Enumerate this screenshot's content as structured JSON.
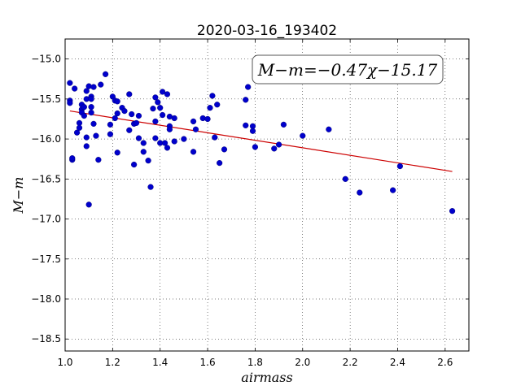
{
  "chart_data": {
    "type": "scatter",
    "title": "2020-03-16_193402",
    "xlabel": "airmass",
    "ylabel": "M−m",
    "xlim": [
      1.0,
      2.7
    ],
    "ylim": [
      -18.65,
      -14.75
    ],
    "xticks": [
      "1.0",
      "1.2",
      "1.4",
      "1.6",
      "1.8",
      "2.0",
      "2.2",
      "2.4",
      "2.6"
    ],
    "yticks": [
      "-15.0",
      "-15.5",
      "-16.0",
      "-16.5",
      "-17.0",
      "-17.5",
      "-18.0",
      "-18.5"
    ],
    "grid": true,
    "annotation": "M−m=−0.47χ−15.17",
    "fit": {
      "slope": -0.47,
      "intercept": -15.17,
      "x": [
        1.02,
        2.63
      ],
      "color": "#cc0000"
    },
    "point_color": "#0000cc",
    "points": [
      [
        1.02,
        -15.3
      ],
      [
        1.02,
        -15.52
      ],
      [
        1.02,
        -15.55
      ],
      [
        1.03,
        -16.26
      ],
      [
        1.03,
        -16.24
      ],
      [
        1.04,
        -15.37
      ],
      [
        1.05,
        -15.92
      ],
      [
        1.06,
        -15.8
      ],
      [
        1.06,
        -15.86
      ],
      [
        1.07,
        -15.57
      ],
      [
        1.07,
        -15.63
      ],
      [
        1.07,
        -15.67
      ],
      [
        1.08,
        -15.71
      ],
      [
        1.08,
        -15.6
      ],
      [
        1.09,
        -15.5
      ],
      [
        1.09,
        -15.4
      ],
      [
        1.09,
        -15.98
      ],
      [
        1.09,
        -16.09
      ],
      [
        1.1,
        -15.34
      ],
      [
        1.1,
        -16.82
      ],
      [
        1.11,
        -15.47
      ],
      [
        1.11,
        -15.5
      ],
      [
        1.11,
        -15.6
      ],
      [
        1.11,
        -15.67
      ],
      [
        1.12,
        -15.35
      ],
      [
        1.12,
        -15.81
      ],
      [
        1.13,
        -15.96
      ],
      [
        1.14,
        -16.26
      ],
      [
        1.15,
        -15.32
      ],
      [
        1.17,
        -15.19
      ],
      [
        1.19,
        -15.94
      ],
      [
        1.19,
        -15.82
      ],
      [
        1.2,
        -15.47
      ],
      [
        1.21,
        -15.52
      ],
      [
        1.21,
        -15.74
      ],
      [
        1.22,
        -15.53
      ],
      [
        1.22,
        -15.68
      ],
      [
        1.22,
        -16.17
      ],
      [
        1.24,
        -15.61
      ],
      [
        1.25,
        -15.65
      ],
      [
        1.27,
        -15.44
      ],
      [
        1.27,
        -15.89
      ],
      [
        1.28,
        -15.69
      ],
      [
        1.29,
        -15.81
      ],
      [
        1.29,
        -16.32
      ],
      [
        1.3,
        -15.8
      ],
      [
        1.31,
        -15.71
      ],
      [
        1.31,
        -15.99
      ],
      [
        1.33,
        -16.05
      ],
      [
        1.33,
        -16.16
      ],
      [
        1.35,
        -16.27
      ],
      [
        1.36,
        -16.6
      ],
      [
        1.37,
        -15.62
      ],
      [
        1.38,
        -15.78
      ],
      [
        1.38,
        -15.99
      ],
      [
        1.38,
        -15.48
      ],
      [
        1.39,
        -15.54
      ],
      [
        1.4,
        -15.61
      ],
      [
        1.4,
        -16.05
      ],
      [
        1.41,
        -15.7
      ],
      [
        1.41,
        -15.41
      ],
      [
        1.42,
        -16.05
      ],
      [
        1.43,
        -15.44
      ],
      [
        1.43,
        -16.11
      ],
      [
        1.44,
        -15.72
      ],
      [
        1.44,
        -15.84
      ],
      [
        1.44,
        -15.88
      ],
      [
        1.46,
        -15.74
      ],
      [
        1.46,
        -16.03
      ],
      [
        1.5,
        -16.0
      ],
      [
        1.54,
        -15.78
      ],
      [
        1.54,
        -16.16
      ],
      [
        1.55,
        -15.88
      ],
      [
        1.58,
        -15.74
      ],
      [
        1.6,
        -15.75
      ],
      [
        1.61,
        -15.61
      ],
      [
        1.62,
        -15.46
      ],
      [
        1.63,
        -15.98
      ],
      [
        1.64,
        -15.57
      ],
      [
        1.65,
        -16.3
      ],
      [
        1.67,
        -16.13
      ],
      [
        1.76,
        -15.51
      ],
      [
        1.76,
        -15.83
      ],
      [
        1.77,
        -15.35
      ],
      [
        1.79,
        -15.84
      ],
      [
        1.79,
        -15.9
      ],
      [
        1.8,
        -16.1
      ],
      [
        1.88,
        -16.12
      ],
      [
        1.9,
        -16.07
      ],
      [
        1.92,
        -15.82
      ],
      [
        2.0,
        -15.96
      ],
      [
        2.11,
        -15.88
      ],
      [
        2.18,
        -16.5
      ],
      [
        2.24,
        -16.67
      ],
      [
        2.38,
        -16.64
      ],
      [
        2.41,
        -16.34
      ],
      [
        2.63,
        -16.9
      ]
    ]
  }
}
